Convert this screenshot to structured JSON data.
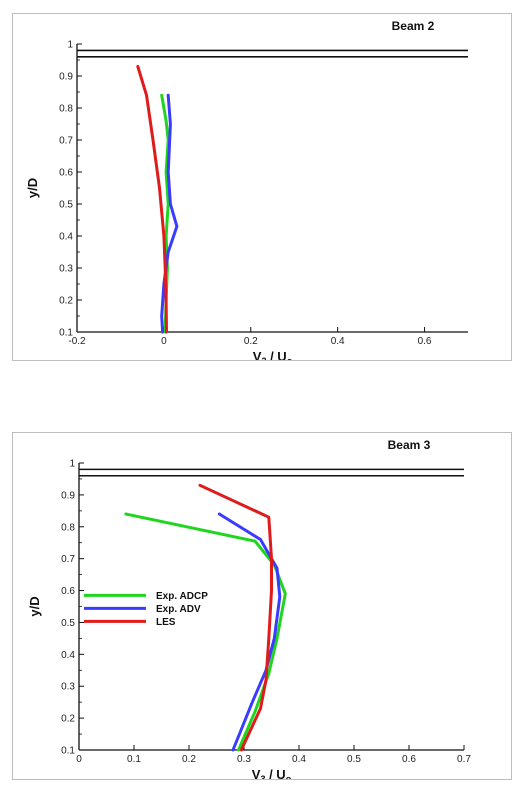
{
  "chart_data": [
    {
      "type": "line",
      "title": "Beam 2",
      "xlabel": "V / U",
      "xlabel_main": "V",
      "xlabel_sub": "2",
      "xlabel_mid": " / U",
      "xlabel_sub2": "o",
      "ylabel": "y/D",
      "xlim": [
        -0.2,
        0.7
      ],
      "ylim": [
        0.1,
        1.0
      ],
      "xticks": [
        "-0.2",
        "0",
        "0.2",
        "0.4",
        "0.6"
      ],
      "xtick_values": [
        -0.2,
        0,
        0.2,
        0.4,
        0.6
      ],
      "yticks": [
        "0.1",
        "0.2",
        "0.3",
        "0.4",
        "0.5",
        "0.6",
        "0.7",
        "0.8",
        "0.9",
        "1"
      ],
      "ytick_values": [
        0.1,
        0.2,
        0.3,
        0.4,
        0.5,
        0.6,
        0.7,
        0.8,
        0.9,
        1.0
      ],
      "wall_lines_y": [
        0.98,
        0.96
      ],
      "series": [
        {
          "color": "#1fd61f",
          "points": [
            [
              -0.005,
              0.84
            ],
            [
              0.005,
              0.76
            ],
            [
              0.01,
              0.7
            ],
            [
              0.005,
              0.6
            ],
            [
              0.01,
              0.5
            ],
            [
              0.005,
              0.4
            ],
            [
              0.008,
              0.3
            ],
            [
              0.005,
              0.2
            ],
            [
              0.003,
              0.1
            ]
          ]
        },
        {
          "color": "#3b3bff",
          "points": [
            [
              0.01,
              0.84
            ],
            [
              0.015,
              0.75
            ],
            [
              0.01,
              0.6
            ],
            [
              0.015,
              0.5
            ],
            [
              0.03,
              0.43
            ],
            [
              0.01,
              0.35
            ],
            [
              0.0,
              0.25
            ],
            [
              -0.005,
              0.15
            ],
            [
              -0.003,
              0.1
            ]
          ]
        },
        {
          "color": "#e01b1b",
          "points": [
            [
              -0.06,
              0.93
            ],
            [
              -0.04,
              0.84
            ],
            [
              -0.025,
              0.7
            ],
            [
              -0.01,
              0.55
            ],
            [
              0.0,
              0.4
            ],
            [
              0.003,
              0.3
            ],
            [
              0.005,
              0.2
            ],
            [
              0.006,
              0.1
            ]
          ]
        }
      ]
    },
    {
      "type": "line",
      "title": "Beam 3",
      "xlabel": "V / U",
      "xlabel_main": "V",
      "xlabel_sub": "3",
      "xlabel_mid": " / U",
      "xlabel_sub2": "o",
      "ylabel": "y/D",
      "xlim": [
        0,
        0.7
      ],
      "ylim": [
        0.1,
        1.0
      ],
      "xticks": [
        "0",
        "0.1",
        "0.2",
        "0.3",
        "0.4",
        "0.5",
        "0.6",
        "0.7"
      ],
      "xtick_values": [
        0,
        0.1,
        0.2,
        0.3,
        0.4,
        0.5,
        0.6,
        0.7
      ],
      "yticks": [
        "0.1",
        "0.2",
        "0.3",
        "0.4",
        "0.5",
        "0.6",
        "0.7",
        "0.8",
        "0.9",
        "1"
      ],
      "ytick_values": [
        0.1,
        0.2,
        0.3,
        0.4,
        0.5,
        0.6,
        0.7,
        0.8,
        0.9,
        1.0
      ],
      "wall_lines_y": [
        0.98,
        0.96
      ],
      "legend": "left",
      "series": [
        {
          "name": "Exp. ADCP",
          "color": "#1fd61f",
          "points": [
            [
              0.085,
              0.84
            ],
            [
              0.32,
              0.755
            ],
            [
              0.355,
              0.68
            ],
            [
              0.375,
              0.59
            ],
            [
              0.36,
              0.45
            ],
            [
              0.345,
              0.34
            ],
            [
              0.32,
              0.22
            ],
            [
              0.29,
              0.1
            ]
          ]
        },
        {
          "name": "Exp. ADV",
          "color": "#3b3bff",
          "points": [
            [
              0.255,
              0.84
            ],
            [
              0.33,
              0.76
            ],
            [
              0.36,
              0.67
            ],
            [
              0.365,
              0.58
            ],
            [
              0.355,
              0.45
            ],
            [
              0.34,
              0.35
            ],
            [
              0.315,
              0.25
            ],
            [
              0.28,
              0.1
            ]
          ]
        },
        {
          "name": "LES",
          "color": "#e01b1b",
          "points": [
            [
              0.22,
              0.93
            ],
            [
              0.345,
              0.83
            ],
            [
              0.35,
              0.7
            ],
            [
              0.35,
              0.6
            ],
            [
              0.345,
              0.45
            ],
            [
              0.34,
              0.32
            ],
            [
              0.33,
              0.23
            ],
            [
              0.295,
              0.1
            ]
          ]
        }
      ]
    }
  ]
}
